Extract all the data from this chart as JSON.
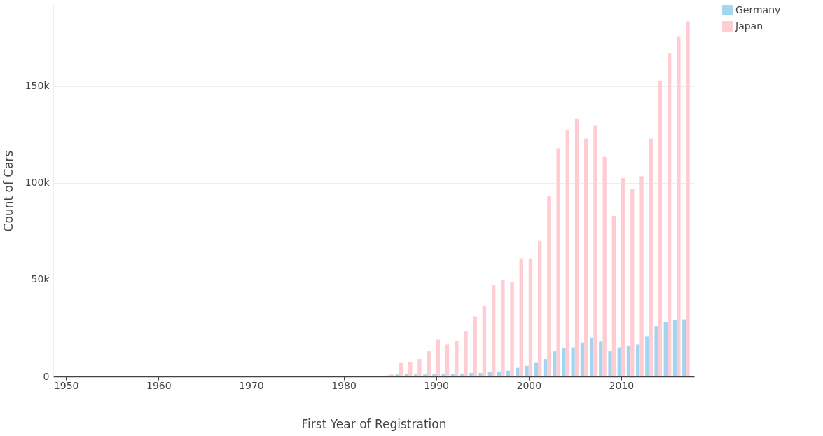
{
  "chart_data": {
    "type": "bar",
    "xlabel": "First Year of Registration",
    "ylabel": "Count of Cars",
    "x": [
      1950,
      1951,
      1952,
      1953,
      1954,
      1955,
      1956,
      1957,
      1958,
      1959,
      1960,
      1961,
      1962,
      1963,
      1964,
      1965,
      1966,
      1967,
      1968,
      1969,
      1970,
      1971,
      1972,
      1973,
      1974,
      1975,
      1976,
      1977,
      1978,
      1979,
      1980,
      1981,
      1982,
      1983,
      1984,
      1985,
      1986,
      1987,
      1988,
      1989,
      1990,
      1991,
      1992,
      1993,
      1994,
      1995,
      1996,
      1997,
      1998,
      1999,
      2000,
      2001,
      2002,
      2003,
      2004,
      2005,
      2006,
      2007,
      2008,
      2009,
      2010,
      2011,
      2012,
      2013,
      2014,
      2015,
      2016,
      2017
    ],
    "series": [
      {
        "name": "Germany",
        "color": "#a3d5f2",
        "values": [
          0,
          0,
          0,
          0,
          0,
          0,
          0,
          0,
          0,
          0,
          0,
          0,
          0,
          0,
          0,
          0,
          0,
          0,
          0,
          0,
          0,
          0,
          0,
          0,
          0,
          0,
          0,
          0,
          0,
          0,
          0,
          0,
          0,
          0,
          0,
          500,
          1000,
          1200,
          1000,
          1000,
          1200,
          1300,
          1300,
          1500,
          1800,
          1800,
          2300,
          2600,
          3000,
          4500,
          5500,
          7000,
          9000,
          13000,
          14500,
          15000,
          17500,
          20000,
          18000,
          13000,
          15000,
          16000,
          16500,
          20500,
          26000,
          28000,
          29000,
          29500
        ]
      },
      {
        "name": "Japan",
        "color": "#ffccd2",
        "values": [
          0,
          0,
          0,
          0,
          0,
          0,
          0,
          0,
          0,
          0,
          0,
          0,
          0,
          0,
          0,
          0,
          0,
          0,
          0,
          0,
          0,
          0,
          0,
          0,
          0,
          0,
          0,
          0,
          0,
          0,
          0,
          0,
          0,
          0,
          0,
          1000,
          7000,
          7500,
          9000,
          13000,
          19000,
          16500,
          18500,
          23500,
          31000,
          36500,
          47500,
          50000,
          48500,
          61000,
          61000,
          70000,
          93000,
          118000,
          127500,
          133000,
          123000,
          129500,
          113500,
          83000,
          102500,
          97000,
          103500,
          123000,
          153000,
          167000,
          175500,
          183500
        ]
      }
    ],
    "xlim": [
      1949,
      2017.5
    ],
    "xticks": [
      1950,
      1960,
      1970,
      1980,
      1990,
      2000,
      2010
    ],
    "ylim": [
      0,
      192000
    ],
    "yticks": [
      {
        "value": 0,
        "label": "0"
      },
      {
        "value": 50000,
        "label": "50k"
      },
      {
        "value": 100000,
        "label": "100k"
      },
      {
        "value": 150000,
        "label": "150k"
      }
    ],
    "grid": "y",
    "legend": "top right"
  }
}
